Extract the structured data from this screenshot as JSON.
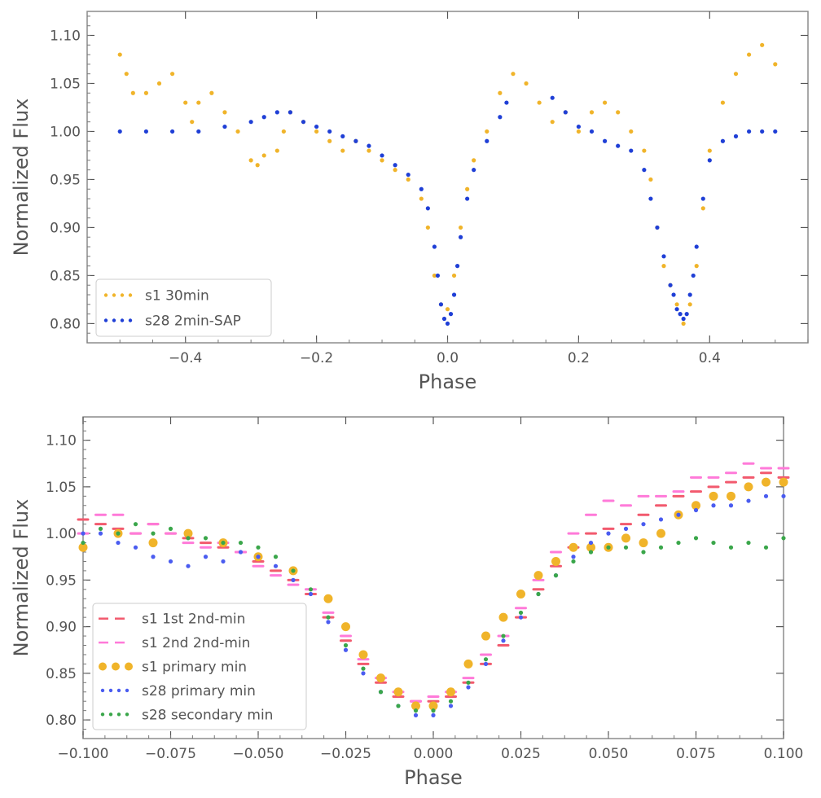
{
  "chart_data": [
    {
      "type": "scatter",
      "title": "",
      "xlabel": "Phase",
      "ylabel": "Normalized Flux",
      "xlim": [
        -0.55,
        0.55
      ],
      "ylim": [
        0.78,
        1.125
      ],
      "xticks": [
        -0.4,
        -0.2,
        0.0,
        0.2,
        0.4
      ],
      "xtick_labels": [
        "−0.4",
        "−0.2",
        "0.0",
        "0.2",
        "0.4"
      ],
      "yticks": [
        0.8,
        0.85,
        0.9,
        0.95,
        1.0,
        1.05,
        1.1
      ],
      "ytick_labels": [
        "0.80",
        "0.85",
        "0.90",
        "0.95",
        "1.00",
        "1.05",
        "1.10"
      ],
      "legend_position": "lower-left",
      "series": [
        {
          "name": "s1 30min",
          "color": "#f0b42a",
          "marker": "dot",
          "x": [
            -0.5,
            -0.49,
            -0.48,
            -0.46,
            -0.44,
            -0.42,
            -0.4,
            -0.39,
            -0.38,
            -0.36,
            -0.34,
            -0.32,
            -0.3,
            -0.29,
            -0.28,
            -0.26,
            -0.25,
            -0.24,
            -0.22,
            -0.2,
            -0.18,
            -0.16,
            -0.14,
            -0.12,
            -0.1,
            -0.08,
            -0.06,
            -0.04,
            -0.03,
            -0.02,
            -0.01,
            0.0,
            0.01,
            0.02,
            0.03,
            0.04,
            0.06,
            0.08,
            0.1,
            0.12,
            0.14,
            0.16,
            0.18,
            0.2,
            0.22,
            0.24,
            0.26,
            0.28,
            0.3,
            0.31,
            0.32,
            0.33,
            0.34,
            0.35,
            0.36,
            0.37,
            0.38,
            0.39,
            0.4,
            0.42,
            0.44,
            0.46,
            0.48,
            0.5
          ],
          "y": [
            1.08,
            1.06,
            1.04,
            1.04,
            1.05,
            1.06,
            1.03,
            1.01,
            1.03,
            1.04,
            1.02,
            1.0,
            0.97,
            0.965,
            0.975,
            0.98,
            1.0,
            1.02,
            1.01,
            1.0,
            0.99,
            0.98,
            0.99,
            0.98,
            0.97,
            0.96,
            0.95,
            0.93,
            0.9,
            0.85,
            0.82,
            0.815,
            0.85,
            0.9,
            0.94,
            0.97,
            1.0,
            1.04,
            1.06,
            1.05,
            1.03,
            1.01,
            1.02,
            1.0,
            1.02,
            1.03,
            1.02,
            1.0,
            0.98,
            0.95,
            0.9,
            0.86,
            0.84,
            0.82,
            0.8,
            0.82,
            0.86,
            0.92,
            0.98,
            1.03,
            1.06,
            1.08,
            1.09,
            1.07
          ]
        },
        {
          "name": "s28 2min-SAP",
          "color": "#1f3fd6",
          "marker": "dot",
          "x": [
            -0.5,
            -0.46,
            -0.42,
            -0.38,
            -0.34,
            -0.3,
            -0.28,
            -0.26,
            -0.24,
            -0.22,
            -0.2,
            -0.18,
            -0.16,
            -0.14,
            -0.12,
            -0.1,
            -0.08,
            -0.06,
            -0.04,
            -0.03,
            -0.02,
            -0.015,
            -0.01,
            -0.005,
            0.0,
            0.005,
            0.01,
            0.015,
            0.02,
            0.03,
            0.04,
            0.06,
            0.08,
            0.09,
            0.16,
            0.18,
            0.2,
            0.22,
            0.24,
            0.26,
            0.28,
            0.3,
            0.31,
            0.32,
            0.33,
            0.34,
            0.345,
            0.35,
            0.355,
            0.36,
            0.365,
            0.37,
            0.375,
            0.38,
            0.39,
            0.4,
            0.42,
            0.44,
            0.46,
            0.48,
            0.5
          ],
          "y": [
            1.0,
            1.0,
            1.0,
            1.0,
            1.005,
            1.01,
            1.015,
            1.02,
            1.02,
            1.01,
            1.005,
            1.0,
            0.995,
            0.99,
            0.985,
            0.975,
            0.965,
            0.955,
            0.94,
            0.92,
            0.88,
            0.85,
            0.82,
            0.805,
            0.8,
            0.81,
            0.83,
            0.86,
            0.89,
            0.93,
            0.96,
            0.99,
            1.015,
            1.03,
            1.035,
            1.02,
            1.005,
            1.0,
            0.99,
            0.985,
            0.98,
            0.96,
            0.93,
            0.9,
            0.87,
            0.84,
            0.83,
            0.815,
            0.81,
            0.805,
            0.81,
            0.83,
            0.85,
            0.88,
            0.93,
            0.97,
            0.99,
            0.995,
            1.0,
            1.0,
            1.0
          ]
        }
      ]
    },
    {
      "type": "scatter",
      "title": "",
      "xlabel": "Phase",
      "ylabel": "Normalized Flux",
      "xlim": [
        -0.1,
        0.1
      ],
      "ylim": [
        0.78,
        1.125
      ],
      "xticks": [
        -0.1,
        -0.075,
        -0.05,
        -0.025,
        0.0,
        0.025,
        0.05,
        0.075,
        0.1
      ],
      "xtick_labels": [
        "−0.100",
        "−0.075",
        "−0.050",
        "−0.025",
        "0.000",
        "0.025",
        "0.050",
        "0.075",
        "0.100"
      ],
      "yticks": [
        0.8,
        0.85,
        0.9,
        0.95,
        1.0,
        1.05,
        1.1
      ],
      "ytick_labels": [
        "0.80",
        "0.85",
        "0.90",
        "0.95",
        "1.00",
        "1.05",
        "1.10"
      ],
      "legend_position": "lower-left",
      "series": [
        {
          "name": "s1 1st 2nd-min",
          "color": "#f25a6e",
          "marker": "dash",
          "x": [
            -0.1,
            -0.095,
            -0.09,
            -0.085,
            -0.08,
            -0.075,
            -0.07,
            -0.065,
            -0.06,
            -0.055,
            -0.05,
            -0.045,
            -0.04,
            -0.035,
            -0.03,
            -0.025,
            -0.02,
            -0.015,
            -0.01,
            -0.005,
            0.0,
            0.005,
            0.01,
            0.015,
            0.02,
            0.025,
            0.03,
            0.035,
            0.04,
            0.045,
            0.05,
            0.055,
            0.06,
            0.065,
            0.07,
            0.075,
            0.08,
            0.085,
            0.09,
            0.095,
            0.1
          ],
          "y": [
            1.015,
            1.01,
            1.005,
            1.0,
            1.01,
            1.0,
            0.995,
            0.99,
            0.985,
            0.98,
            0.97,
            0.96,
            0.95,
            0.935,
            0.91,
            0.885,
            0.86,
            0.84,
            0.825,
            0.82,
            0.82,
            0.825,
            0.84,
            0.86,
            0.88,
            0.91,
            0.94,
            0.965,
            0.985,
            1.0,
            1.005,
            1.01,
            1.02,
            1.03,
            1.04,
            1.045,
            1.05,
            1.055,
            1.06,
            1.065,
            1.06
          ]
        },
        {
          "name": "s1 2nd 2nd-min",
          "color": "#ff7ad9",
          "marker": "dash",
          "x": [
            -0.1,
            -0.095,
            -0.09,
            -0.085,
            -0.08,
            -0.075,
            -0.07,
            -0.065,
            -0.06,
            -0.055,
            -0.05,
            -0.045,
            -0.04,
            -0.035,
            -0.03,
            -0.025,
            -0.02,
            -0.015,
            -0.01,
            -0.005,
            0.0,
            0.005,
            0.01,
            0.015,
            0.02,
            0.025,
            0.03,
            0.035,
            0.04,
            0.045,
            0.05,
            0.055,
            0.06,
            0.065,
            0.07,
            0.075,
            0.08,
            0.085,
            0.09,
            0.095,
            0.1
          ],
          "y": [
            1.0,
            1.02,
            1.02,
            1.0,
            1.01,
            1.0,
            0.99,
            0.985,
            0.99,
            0.98,
            0.965,
            0.955,
            0.945,
            0.94,
            0.915,
            0.89,
            0.865,
            0.845,
            0.83,
            0.82,
            0.825,
            0.83,
            0.845,
            0.87,
            0.89,
            0.92,
            0.95,
            0.98,
            1.0,
            1.02,
            1.035,
            1.03,
            1.04,
            1.04,
            1.045,
            1.06,
            1.06,
            1.065,
            1.075,
            1.07,
            1.07
          ]
        },
        {
          "name": "s1 primary min",
          "color": "#f0b42a",
          "marker": "circle",
          "x": [
            -0.1,
            -0.09,
            -0.08,
            -0.07,
            -0.06,
            -0.05,
            -0.04,
            -0.03,
            -0.025,
            -0.02,
            -0.015,
            -0.01,
            -0.005,
            0.0,
            0.005,
            0.01,
            0.015,
            0.02,
            0.025,
            0.03,
            0.035,
            0.04,
            0.045,
            0.05,
            0.055,
            0.06,
            0.065,
            0.07,
            0.075,
            0.08,
            0.085,
            0.09,
            0.095,
            0.1
          ],
          "y": [
            0.985,
            1.0,
            0.99,
            1.0,
            0.99,
            0.975,
            0.96,
            0.93,
            0.9,
            0.87,
            0.845,
            0.83,
            0.815,
            0.815,
            0.83,
            0.86,
            0.89,
            0.91,
            0.935,
            0.955,
            0.97,
            0.985,
            0.985,
            0.985,
            0.995,
            0.99,
            1.0,
            1.02,
            1.03,
            1.04,
            1.04,
            1.05,
            1.055,
            1.055
          ]
        },
        {
          "name": "s28 primary min",
          "color": "#4a5cf0",
          "marker": "dot",
          "x": [
            -0.1,
            -0.095,
            -0.09,
            -0.085,
            -0.08,
            -0.075,
            -0.07,
            -0.065,
            -0.06,
            -0.055,
            -0.05,
            -0.045,
            -0.04,
            -0.035,
            -0.03,
            -0.025,
            -0.02,
            -0.015,
            -0.01,
            -0.005,
            0.0,
            0.005,
            0.01,
            0.015,
            0.02,
            0.025,
            0.03,
            0.035,
            0.04,
            0.045,
            0.05,
            0.055,
            0.06,
            0.065,
            0.07,
            0.075,
            0.08,
            0.085,
            0.09,
            0.095,
            0.1
          ],
          "y": [
            1.0,
            1.0,
            0.99,
            0.985,
            0.975,
            0.97,
            0.965,
            0.975,
            0.97,
            0.98,
            0.975,
            0.965,
            0.95,
            0.935,
            0.905,
            0.875,
            0.85,
            0.83,
            0.815,
            0.805,
            0.805,
            0.815,
            0.835,
            0.86,
            0.885,
            0.91,
            0.935,
            0.955,
            0.975,
            0.99,
            1.0,
            1.005,
            1.01,
            1.015,
            1.02,
            1.025,
            1.03,
            1.03,
            1.035,
            1.04,
            1.04
          ]
        },
        {
          "name": "s28 secondary min",
          "color": "#3aa64a",
          "marker": "dot",
          "x": [
            -0.1,
            -0.095,
            -0.09,
            -0.085,
            -0.08,
            -0.075,
            -0.07,
            -0.065,
            -0.06,
            -0.055,
            -0.05,
            -0.045,
            -0.04,
            -0.035,
            -0.03,
            -0.025,
            -0.02,
            -0.015,
            -0.01,
            -0.005,
            0.0,
            0.005,
            0.01,
            0.015,
            0.02,
            0.025,
            0.03,
            0.035,
            0.04,
            0.045,
            0.05,
            0.055,
            0.06,
            0.065,
            0.07,
            0.075,
            0.08,
            0.085,
            0.09,
            0.095,
            0.1
          ],
          "y": [
            0.99,
            1.005,
            1.0,
            1.01,
            1.0,
            1.005,
            0.995,
            0.995,
            0.99,
            0.99,
            0.985,
            0.975,
            0.96,
            0.94,
            0.91,
            0.88,
            0.855,
            0.83,
            0.815,
            0.81,
            0.81,
            0.82,
            0.84,
            0.865,
            0.89,
            0.915,
            0.935,
            0.955,
            0.97,
            0.98,
            0.985,
            0.985,
            0.98,
            0.985,
            0.99,
            0.995,
            0.99,
            0.985,
            0.99,
            0.985,
            0.995
          ]
        }
      ]
    }
  ]
}
